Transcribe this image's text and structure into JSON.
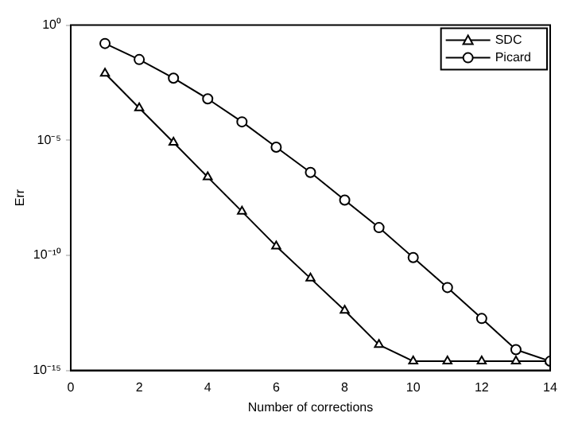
{
  "chart_data": {
    "type": "line",
    "xlabel": "Number of corrections",
    "ylabel": "Err",
    "x": [
      1,
      2,
      3,
      4,
      5,
      6,
      7,
      8,
      9,
      10,
      11,
      12,
      13,
      14
    ],
    "series": [
      {
        "name": "SDC",
        "color": "#000000",
        "marker": "triangle",
        "values": [
          0.008,
          0.00025,
          8e-06,
          2.5e-07,
          8e-09,
          2.5e-10,
          1e-11,
          4e-13,
          1.3e-14,
          2.5e-15,
          2.5e-15,
          2.5e-15,
          2.5e-15,
          2.5e-15
        ]
      },
      {
        "name": "Picard",
        "color": "#000000",
        "marker": "circle",
        "values": [
          0.16,
          0.032,
          0.005,
          0.00063,
          6.3e-05,
          5e-06,
          4e-07,
          2.5e-08,
          1.6e-09,
          8e-11,
          4e-12,
          1.8e-13,
          8e-15,
          2.5e-15
        ]
      }
    ],
    "xlim": [
      0,
      14
    ],
    "xticks": [
      0,
      2,
      4,
      6,
      8,
      10,
      12,
      14
    ],
    "ylim": [
      1e-15,
      1
    ],
    "yticks": [
      {
        "value": 1e-15,
        "label": "10⁻¹⁵"
      },
      {
        "value": 1e-10,
        "label": "10⁻¹⁰"
      },
      {
        "value": 1e-05,
        "label": "10⁻⁵"
      },
      {
        "value": 1,
        "label": "10⁰"
      }
    ],
    "log": "y",
    "grid": false,
    "legend": "top right",
    "line_style": "solid"
  }
}
